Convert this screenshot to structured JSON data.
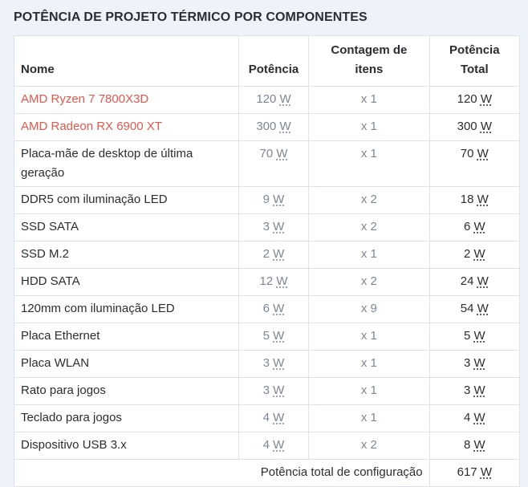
{
  "title": "POTÊNCIA DE PROJETO TÉRMICO POR COMPONENTES",
  "headers": {
    "name": "Nome",
    "power": "Potência",
    "count_line1": "Contagem de",
    "count_line2": "itens",
    "total_line1": "Potência",
    "total_line2": "Total"
  },
  "unit": "W",
  "rows": [
    {
      "name": "AMD Ryzen 7 7800X3D",
      "power": "120",
      "count": "x 1",
      "total": "120",
      "highlight": true
    },
    {
      "name": "AMD Radeon RX 6900 XT",
      "power": "300",
      "count": "x 1",
      "total": "300",
      "highlight": true
    },
    {
      "name": "Placa-mãe de desktop de última geração",
      "power": "70",
      "count": "x 1",
      "total": "70",
      "highlight": false
    },
    {
      "name": "DDR5 com iluminação LED",
      "power": "9",
      "count": "x 2",
      "total": "18",
      "highlight": false
    },
    {
      "name": "SSD SATA",
      "power": "3",
      "count": "x 2",
      "total": "6",
      "highlight": false
    },
    {
      "name": "SSD M.2",
      "power": "2",
      "count": "x 1",
      "total": "2",
      "highlight": false
    },
    {
      "name": "HDD SATA",
      "power": "12",
      "count": "x 2",
      "total": "24",
      "highlight": false
    },
    {
      "name": "120mm com iluminação LED",
      "power": "6",
      "count": "x 9",
      "total": "54",
      "highlight": false
    },
    {
      "name": "Placa Ethernet",
      "power": "5",
      "count": "x 1",
      "total": "5",
      "highlight": false
    },
    {
      "name": "Placa WLAN",
      "power": "3",
      "count": "x 1",
      "total": "3",
      "highlight": false
    },
    {
      "name": "Rato para jogos",
      "power": "3",
      "count": "x 1",
      "total": "3",
      "highlight": false
    },
    {
      "name": "Teclado para jogos",
      "power": "4",
      "count": "x 1",
      "total": "4",
      "highlight": false
    },
    {
      "name": "Dispositivo USB 3.x",
      "power": "4",
      "count": "x 2",
      "total": "8",
      "highlight": false
    }
  ],
  "footer": {
    "label": "Potência total de configuração",
    "total": "617"
  },
  "colors": {
    "highlight_text": "#e2574c",
    "muted_text": "#7d8793",
    "border": "#dee2e6",
    "background": "#eef3fb"
  }
}
